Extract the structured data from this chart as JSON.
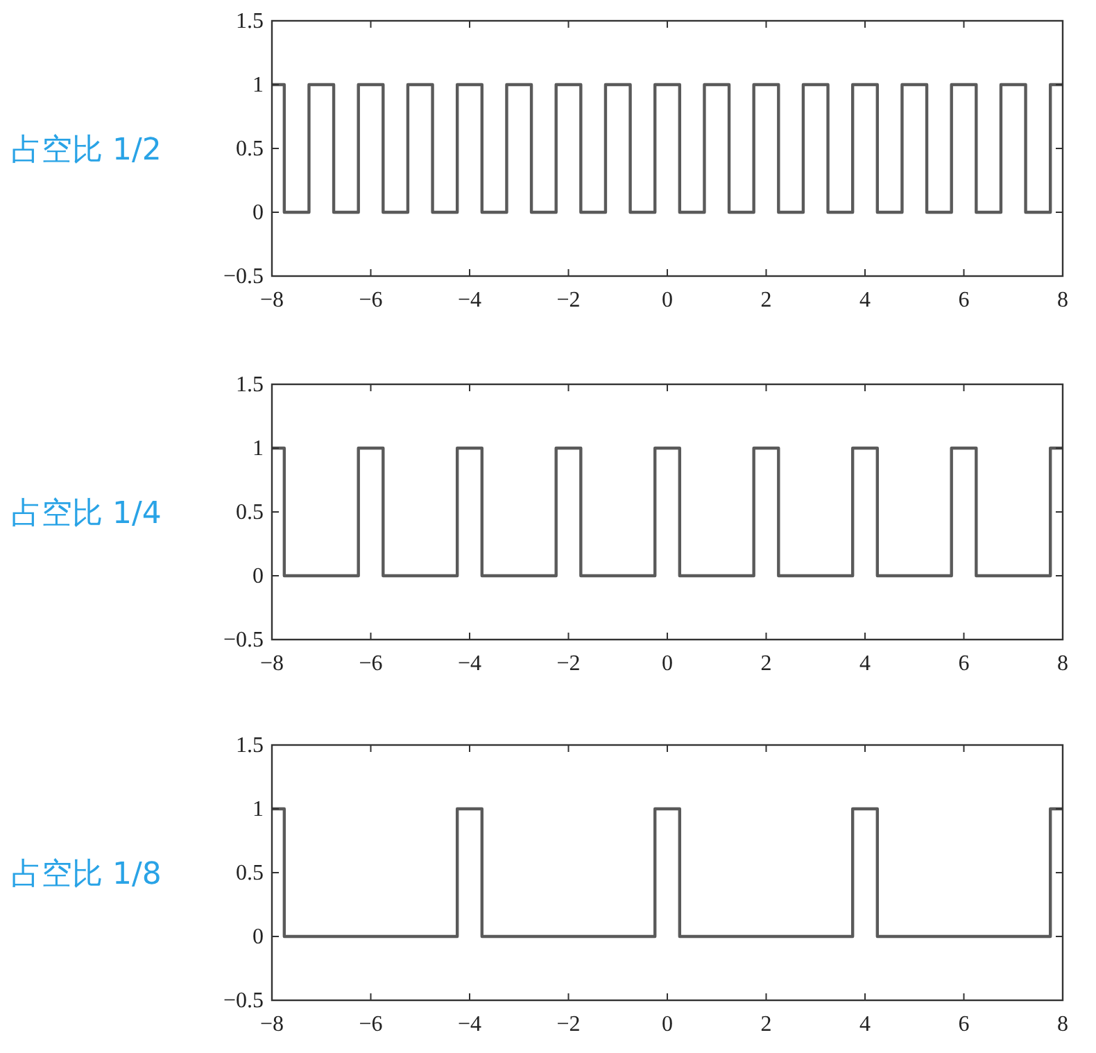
{
  "chart_data": [
    {
      "type": "step",
      "color": "#5a5a5a",
      "x": [
        -8,
        -7.75,
        -7.25,
        -6.75,
        -6.25,
        -5.75,
        -5.25,
        -4.75,
        -4.25,
        -3.75,
        -3.25,
        -2.75,
        -2.25,
        -1.75,
        -1.25,
        -0.75,
        -0.25,
        0.25,
        0.75,
        1.25,
        1.75,
        2.25,
        2.75,
        3.25,
        3.75,
        4.25,
        4.75,
        5.25,
        5.75,
        6.25,
        6.75,
        7.25,
        7.75,
        8
      ],
      "values": [
        1,
        0,
        1,
        0,
        1,
        0,
        1,
        0,
        1,
        0,
        1,
        0,
        1,
        0,
        1,
        0,
        1,
        0,
        1,
        0,
        1,
        0,
        1,
        0,
        1,
        0,
        1,
        0,
        1,
        0,
        1,
        0,
        1,
        1
      ],
      "xlim": [
        -8,
        8
      ],
      "ylim": [
        -0.5,
        1.5
      ],
      "xticks": [
        -8,
        -6,
        -4,
        -2,
        0,
        2,
        4,
        6,
        8
      ],
      "yticks": [
        -0.5,
        0,
        0.5,
        1,
        1.5
      ],
      "annotations": [
        "占空比 1/2"
      ]
    },
    {
      "type": "step",
      "color": "#5a5a5a",
      "x": [
        -8,
        -7.75,
        -6.25,
        -5.75,
        -4.25,
        -3.75,
        -2.25,
        -1.75,
        -0.25,
        0.25,
        1.75,
        2.25,
        3.75,
        4.25,
        5.75,
        6.25,
        7.75,
        8
      ],
      "values": [
        1,
        0,
        1,
        0,
        1,
        0,
        1,
        0,
        1,
        0,
        1,
        0,
        1,
        0,
        1,
        0,
        1,
        1
      ],
      "xlim": [
        -8,
        8
      ],
      "ylim": [
        -0.5,
        1.5
      ],
      "xticks": [
        -8,
        -6,
        -4,
        -2,
        0,
        2,
        4,
        6,
        8
      ],
      "yticks": [
        -0.5,
        0,
        0.5,
        1,
        1.5
      ],
      "annotations": [
        "占空比 1/4"
      ]
    },
    {
      "type": "step",
      "color": "#5a5a5a",
      "x": [
        -8,
        -7.75,
        -4.25,
        -3.75,
        -0.25,
        0.25,
        3.75,
        4.25,
        7.75,
        8
      ],
      "values": [
        1,
        0,
        1,
        0,
        1,
        0,
        1,
        0,
        1,
        1
      ],
      "xlim": [
        -8,
        8
      ],
      "ylim": [
        -0.5,
        1.5
      ],
      "xticks": [
        -8,
        -6,
        -4,
        -2,
        0,
        2,
        4,
        6,
        8
      ],
      "yticks": [
        -0.5,
        0,
        0.5,
        1,
        1.5
      ],
      "annotations": [
        "占空比 1/8"
      ]
    }
  ]
}
